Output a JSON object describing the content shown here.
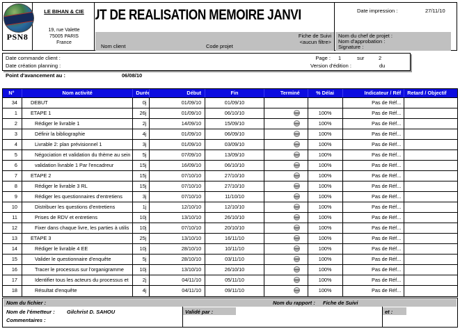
{
  "colors": {
    "table_header_bg": "#0d0de0",
    "band_gray": "#c0c0c0",
    "page_bg": "#ffffff"
  },
  "header": {
    "logo": {
      "text": "PSN8"
    },
    "company": {
      "name": "LE BIHAN & CIE",
      "address": [
        "19, rue Valette",
        "75005 PARIS",
        "France"
      ]
    },
    "title": "UT DE REALISATION MEMOIRE JANVI",
    "date_impression_label": "Date impression :",
    "date_impression_value": "27/11/10",
    "fiche": "Fiche de Suivi",
    "filter": "<aucun filtre>",
    "nom_client_label": "Nom client",
    "code_projet_label": "Code projet",
    "chef": [
      "Nom du chef de projet :",
      "Nom d'approbation :",
      "Signature :"
    ]
  },
  "info": {
    "date_commande": "Date commande client :",
    "date_creation": "Date création planning :",
    "page_label": "Page :",
    "page_value": "1",
    "sur_label": "sur",
    "sur_value": "2",
    "version_label": "Version d'édition :",
    "version_du": "du"
  },
  "avancement": {
    "label": "Point d'avancement au :",
    "value": "06/08/10"
  },
  "table": {
    "columns": [
      "N°",
      "Nom activité",
      "Durée",
      "Début",
      "Fin",
      "Terminé",
      "% Délai",
      "Indicateur / Réf",
      "Retard / Objectif"
    ],
    "rows": [
      {
        "num": "34",
        "name": "DEBUT",
        "level": 1,
        "duree": "0j",
        "debut": "01/09/10",
        "fin": "01/09/10",
        "termine": false,
        "delai": "",
        "ref": "Pas de Réf...",
        "retard": ""
      },
      {
        "num": "1",
        "name": "ETAPE 1",
        "level": 1,
        "duree": "26j",
        "debut": "01/09/10",
        "fin": "06/10/10",
        "termine": true,
        "delai": "100%",
        "ref": "Pas de Réf...",
        "retard": ""
      },
      {
        "num": "2",
        "name": "Rédiger le livrable 1",
        "level": 2,
        "duree": "2j",
        "debut": "14/09/10",
        "fin": "15/09/10",
        "termine": true,
        "delai": "100%",
        "ref": "Pas de Réf...",
        "retard": ""
      },
      {
        "num": "3",
        "name": "Définir la bibliographie",
        "level": 2,
        "duree": "4j",
        "debut": "01/09/10",
        "fin": "06/09/10",
        "termine": true,
        "delai": "100%",
        "ref": "Pas de Réf...",
        "retard": ""
      },
      {
        "num": "4",
        "name": "Livrable 2: plan prévisionnel 1",
        "level": 2,
        "duree": "3j",
        "debut": "01/09/10",
        "fin": "03/09/10",
        "termine": true,
        "delai": "100%",
        "ref": "Pas de Réf...",
        "retard": ""
      },
      {
        "num": "5",
        "name": "Négociation et validation du thème au sein",
        "level": 2,
        "duree": "5j",
        "debut": "07/09/10",
        "fin": "13/09/10",
        "termine": true,
        "delai": "100%",
        "ref": "Pas de Réf...",
        "retard": ""
      },
      {
        "num": "6",
        "name": "validation livrable 1 Par l'encadreur",
        "level": 2,
        "duree": "15j",
        "debut": "16/09/10",
        "fin": "06/10/10",
        "termine": true,
        "delai": "100%",
        "ref": "Pas de Réf...",
        "retard": ""
      },
      {
        "num": "7",
        "name": "ETAPE 2",
        "level": 1,
        "duree": "15j",
        "debut": "07/10/10",
        "fin": "27/10/10",
        "termine": true,
        "delai": "100%",
        "ref": "Pas de Réf...",
        "retard": ""
      },
      {
        "num": "8",
        "name": "Rédiger le livrable 3 RL",
        "level": 2,
        "duree": "15j",
        "debut": "07/10/10",
        "fin": "27/10/10",
        "termine": true,
        "delai": "100%",
        "ref": "Pas de Réf...",
        "retard": ""
      },
      {
        "num": "9",
        "name": "Rédiger les questionnaires d'entretiens",
        "level": 2,
        "duree": "3j",
        "debut": "07/10/10",
        "fin": "11/10/10",
        "termine": true,
        "delai": "100%",
        "ref": "Pas de Réf...",
        "retard": ""
      },
      {
        "num": "10",
        "name": "Distribuer les questions d'entretiens",
        "level": 2,
        "duree": "1j",
        "debut": "12/10/10",
        "fin": "12/10/10",
        "termine": true,
        "delai": "100%",
        "ref": "Pas de Réf...",
        "retard": ""
      },
      {
        "num": "11",
        "name": "Prises de RDV et entretiens",
        "level": 2,
        "duree": "10j",
        "debut": "13/10/10",
        "fin": "26/10/10",
        "termine": true,
        "delai": "100%",
        "ref": "Pas de Réf...",
        "retard": ""
      },
      {
        "num": "12",
        "name": "Fixer dans chaque livre, les parties à utilis",
        "level": 2,
        "duree": "10j",
        "debut": "07/10/10",
        "fin": "20/10/10",
        "termine": true,
        "delai": "100%",
        "ref": "Pas de Réf...",
        "retard": ""
      },
      {
        "num": "13",
        "name": "ETAPE 3",
        "level": 1,
        "duree": "25j",
        "debut": "13/10/10",
        "fin": "16/11/10",
        "termine": true,
        "delai": "100%",
        "ref": "Pas de Réf...",
        "retard": ""
      },
      {
        "num": "14",
        "name": "Rédiger le livrable 4 EE",
        "level": 2,
        "duree": "10j",
        "debut": "28/10/10",
        "fin": "10/11/10",
        "termine": true,
        "delai": "100%",
        "ref": "Pas de Réf...",
        "retard": ""
      },
      {
        "num": "15",
        "name": "Valider le questionnaire d'enquête",
        "level": 2,
        "duree": "5j",
        "debut": "28/10/10",
        "fin": "03/11/10",
        "termine": true,
        "delai": "100%",
        "ref": "Pas de Réf...",
        "retard": ""
      },
      {
        "num": "16",
        "name": "Tracer le processus sur l'organigramme",
        "level": 2,
        "duree": "10j",
        "debut": "13/10/10",
        "fin": "26/10/10",
        "termine": true,
        "delai": "100%",
        "ref": "Pas de Réf...",
        "retard": ""
      },
      {
        "num": "17",
        "name": "Identifier tous les acteurs du processus et",
        "level": 2,
        "duree": "2j",
        "debut": "04/11/10",
        "fin": "05/11/10",
        "termine": true,
        "delai": "100%",
        "ref": "Pas de Réf...",
        "retard": ""
      },
      {
        "num": "18",
        "name": "Résultat d'enquête",
        "level": 2,
        "duree": "4j",
        "debut": "04/11/10",
        "fin": "09/11/10",
        "termine": true,
        "delai": "100%",
        "ref": "Pas de Réf...",
        "retard": ""
      }
    ]
  },
  "footer": {
    "fichier_label": "Nom du fichier :",
    "rapport_label": "Nom du rapport :",
    "rapport_value": "Fiche de Suivi",
    "emetteur_label": "Nom de l'émetteur :",
    "emetteur_value": "Gilchrist D. SAHOU",
    "valide_label": "Validé par :",
    "et_label": "et :",
    "commentaires_label": "Commentaires :"
  }
}
